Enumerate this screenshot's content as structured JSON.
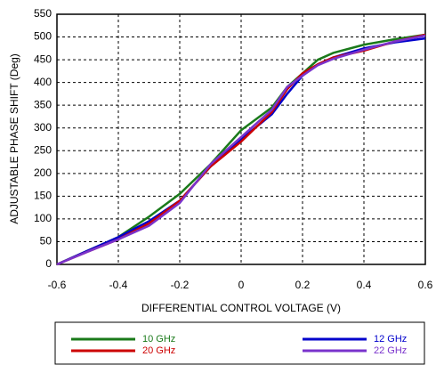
{
  "chart_data": {
    "type": "line",
    "x_label": "DIFFERENTIAL CONTROL VOLTAGE (V)",
    "y_label": "ADJUSTABLE PHASE SHIFT (Deg)",
    "x": [
      -0.6,
      -0.5,
      -0.4,
      -0.3,
      -0.2,
      -0.1,
      0,
      0.1,
      0.15,
      0.2,
      0.25,
      0.3,
      0.4,
      0.5,
      0.6
    ],
    "series": [
      {
        "name": "10 GHz",
        "color": "#1a7a1a",
        "values": [
          0,
          30,
          60,
          105,
          155,
          220,
          295,
          345,
          390,
          420,
          450,
          465,
          483,
          495,
          505
        ]
      },
      {
        "name": "12 GHz",
        "color": "#0000cc",
        "values": [
          0,
          30,
          60,
          95,
          140,
          215,
          275,
          330,
          375,
          415,
          440,
          455,
          475,
          488,
          497
        ]
      },
      {
        "name": "20 GHz",
        "color": "#cc0000",
        "values": [
          0,
          28,
          55,
          90,
          140,
          215,
          270,
          335,
          385,
          420,
          440,
          455,
          470,
          490,
          505
        ]
      },
      {
        "name": "22 GHz",
        "color": "#7a33cc",
        "values": [
          0,
          28,
          55,
          85,
          135,
          220,
          280,
          340,
          390,
          415,
          438,
          452,
          472,
          490,
          503
        ]
      }
    ],
    "xlim": [
      -0.6,
      0.6
    ],
    "xticks": [
      -0.6,
      -0.4,
      -0.2,
      0,
      0.2,
      0.4,
      0.6
    ],
    "ylim": [
      0,
      550
    ],
    "yticks": [
      0,
      50,
      100,
      150,
      200,
      250,
      300,
      350,
      400,
      450,
      500,
      550
    ],
    "grid": true
  }
}
